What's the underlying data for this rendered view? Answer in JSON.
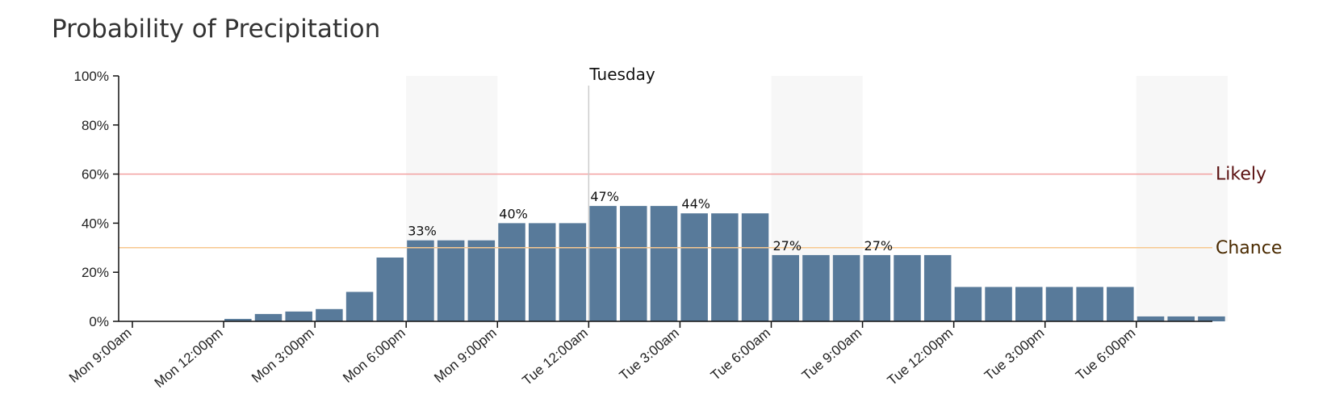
{
  "title": "Probability of Precipitation",
  "colors": {
    "bar": "#587a9a",
    "night_band": "#f7f7f7",
    "likely": "#f2a0a0",
    "likely_text": "#5a1010",
    "chance": "#f7c890",
    "chance_text": "#4a2a00",
    "axis": "#111111",
    "day_marker": "#cccccc"
  },
  "chart_data": {
    "type": "bar",
    "title": "Probability of Precipitation",
    "xlabel": "",
    "ylabel": "",
    "ylim": [
      0,
      100
    ],
    "y_ticks": [
      "0%",
      "20%",
      "40%",
      "60%",
      "80%",
      "100%"
    ],
    "x_tick_labels": [
      "Mon 9:00am",
      "Mon 12:00pm",
      "Mon 3:00pm",
      "Mon 6:00pm",
      "Mon 9:00pm",
      "Tue 12:00am",
      "Tue 3:00am",
      "Tue 6:00am",
      "Tue 9:00am",
      "Tue 12:00pm",
      "Tue 3:00pm",
      "Tue 6:00pm"
    ],
    "categories": [
      "Mon 9:00am",
      "Mon 10:00am",
      "Mon 11:00am",
      "Mon 12:00pm",
      "Mon 1:00pm",
      "Mon 2:00pm",
      "Mon 3:00pm",
      "Mon 4:00pm",
      "Mon 5:00pm",
      "Mon 6:00pm",
      "Mon 7:00pm",
      "Mon 8:00pm",
      "Mon 9:00pm",
      "Mon 10:00pm",
      "Mon 11:00pm",
      "Tue 12:00am",
      "Tue 1:00am",
      "Tue 2:00am",
      "Tue 3:00am",
      "Tue 4:00am",
      "Tue 5:00am",
      "Tue 6:00am",
      "Tue 7:00am",
      "Tue 8:00am",
      "Tue 9:00am",
      "Tue 10:00am",
      "Tue 11:00am",
      "Tue 12:00pm",
      "Tue 1:00pm",
      "Tue 2:00pm",
      "Tue 3:00pm",
      "Tue 4:00pm",
      "Tue 5:00pm",
      "Tue 6:00pm",
      "Tue 7:00pm",
      "Tue 8:00pm"
    ],
    "values": [
      0,
      0,
      0,
      1,
      3,
      4,
      5,
      12,
      26,
      33,
      33,
      33,
      40,
      40,
      40,
      47,
      47,
      47,
      44,
      44,
      44,
      27,
      27,
      27,
      27,
      27,
      27,
      14,
      14,
      14,
      14,
      14,
      14,
      2,
      2,
      2
    ],
    "data_labels": [
      {
        "index": 9,
        "text": "33%"
      },
      {
        "index": 12,
        "text": "40%"
      },
      {
        "index": 15,
        "text": "47%"
      },
      {
        "index": 18,
        "text": "44%"
      },
      {
        "index": 21,
        "text": "27%"
      },
      {
        "index": 24,
        "text": "27%"
      }
    ],
    "reference_lines": [
      {
        "label": "Likely",
        "value": 60
      },
      {
        "label": "Chance",
        "value": 30
      }
    ],
    "day_marker": {
      "label": "Tuesday",
      "at": "Tue 12:00am"
    },
    "night_bands": [
      {
        "from": "Mon 6:00pm",
        "to": "Mon 9:00pm"
      },
      {
        "from": "Tue 6:00am",
        "to": "Tue 9:00am"
      },
      {
        "from": "Tue 6:00pm",
        "to": "Tue 9:00pm"
      }
    ],
    "grid": false,
    "legend": "none"
  }
}
